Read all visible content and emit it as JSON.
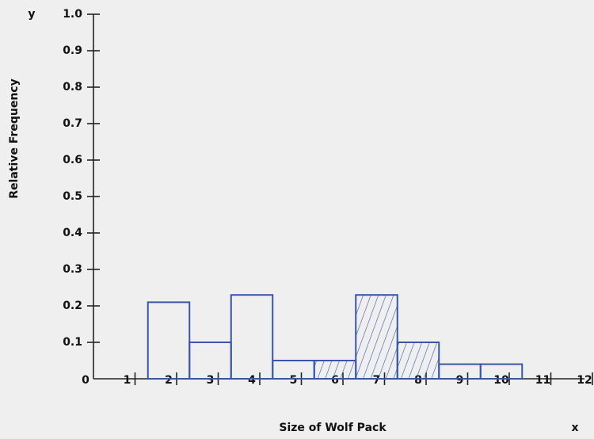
{
  "chart_data": {
    "type": "histogram",
    "x_label": "Size of Wolf Pack",
    "y_label": "Relative Frequency",
    "x_axis_letter": "x",
    "y_axis_letter": "y",
    "bins": [
      1.5,
      2.5,
      3.5,
      4.5,
      5.5,
      6.5,
      7.5,
      8.5,
      9.5,
      10.5
    ],
    "values": [
      0.21,
      0.1,
      0.23,
      0.05,
      0.05,
      0.23,
      0.1,
      0.04,
      0.04
    ],
    "hatched": [
      false,
      false,
      false,
      false,
      true,
      true,
      true,
      false,
      false
    ],
    "color": "#3a55a8",
    "xlim": [
      0,
      12
    ],
    "xticks": [
      0,
      1,
      2,
      3,
      4,
      5,
      6,
      7,
      8,
      9,
      10,
      11,
      12
    ],
    "ylim": [
      0,
      1
    ],
    "yticks": [
      0.1,
      0.2,
      0.3,
      0.4,
      0.5,
      0.6,
      0.7,
      0.8,
      0.9,
      {
        "value": 1,
        "label": "1.0"
      }
    ]
  }
}
